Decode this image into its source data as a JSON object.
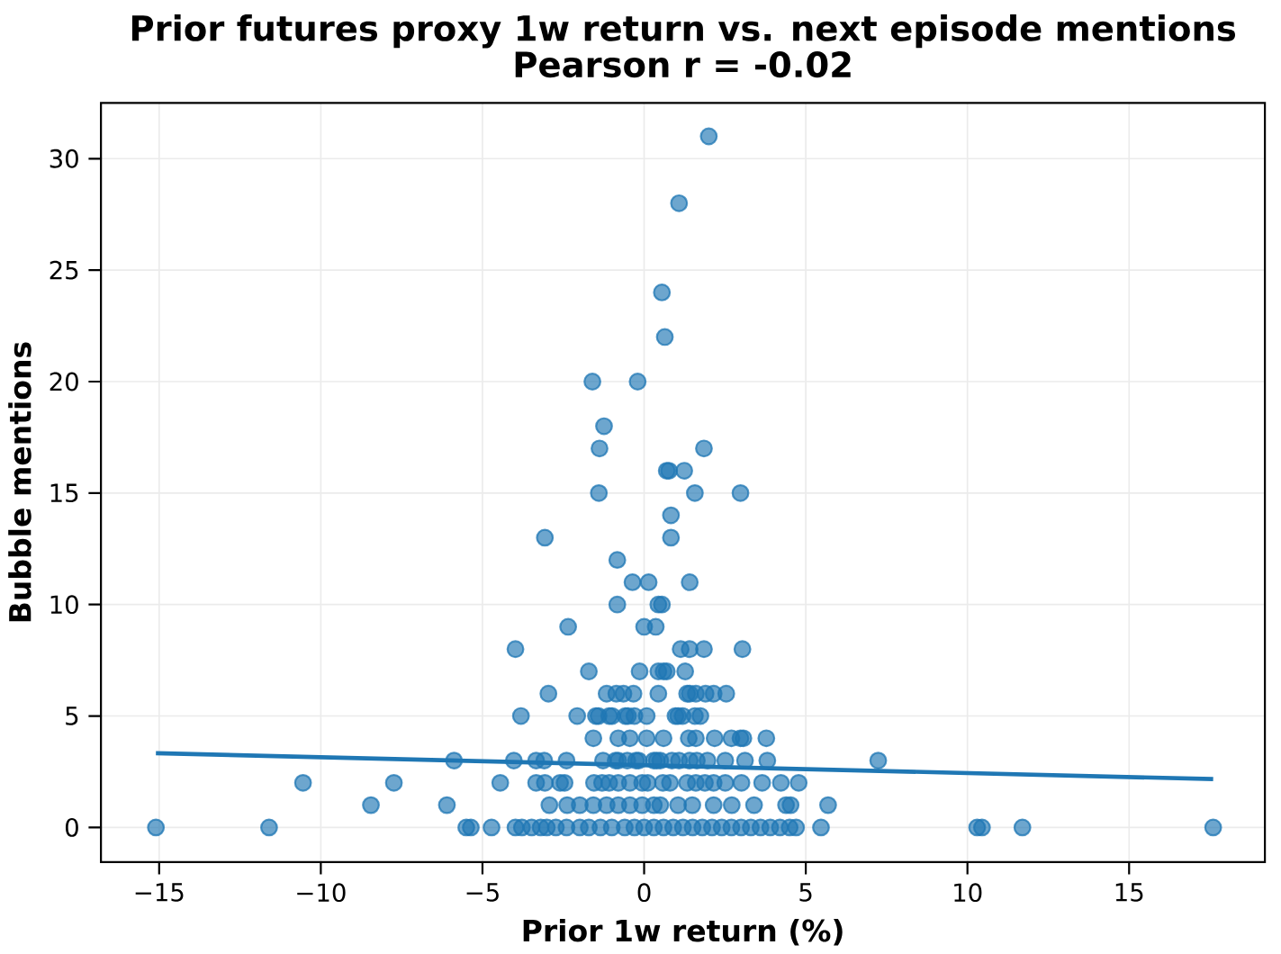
{
  "chart_data": {
    "type": "scatter",
    "title": "Prior futures proxy 1w return vs. next episode mentions",
    "subtitle": "Pearson r = -0.02",
    "xlabel": "Prior 1w return (%)",
    "ylabel": "Bubble mentions",
    "xlim": [
      -16.8,
      19.2
    ],
    "ylim": [
      -1.55,
      32.5
    ],
    "xticks": [
      {
        "value": -15,
        "label": "−15"
      },
      {
        "value": -10,
        "label": "−10"
      },
      {
        "value": -5,
        "label": "−5"
      },
      0,
      5,
      10,
      15
    ],
    "yticks": [
      0,
      5,
      10,
      15,
      20,
      25,
      30
    ],
    "grid": true,
    "marker": "circle",
    "series": [
      {
        "type": "scatter",
        "color": "#1f77b4",
        "x": [
          2.0,
          1.08,
          0.55,
          0.64,
          -1.6,
          -0.2,
          -1.24,
          -1.38,
          1.85,
          0.7,
          0.77,
          1.24,
          -1.4,
          1.57,
          2.98,
          0.83,
          -3.07,
          0.83,
          -0.83,
          -0.36,
          0.14,
          1.41,
          -0.83,
          0.44,
          0.55,
          -2.35,
          0.0,
          0.36,
          -3.98,
          1.13,
          1.41,
          1.85,
          3.04,
          -1.71,
          -0.14,
          0.44,
          0.6,
          0.7,
          1.27,
          -2.96,
          -1.16,
          -0.86,
          -0.64,
          -0.33,
          0.44,
          1.33,
          1.41,
          1.6,
          1.9,
          2.15,
          2.54,
          -3.81,
          -2.07,
          -1.49,
          -1.41,
          -1.08,
          -0.99,
          -0.58,
          -0.5,
          -0.3,
          0.08,
          0.97,
          1.05,
          1.19,
          1.57,
          1.74,
          -1.57,
          -0.8,
          -0.44,
          0.08,
          0.6,
          1.38,
          1.6,
          2.18,
          2.7,
          2.98,
          3.07,
          3.78,
          -5.88,
          -4.03,
          -3.34,
          -3.09,
          -2.4,
          -1.27,
          -0.88,
          -0.8,
          -0.52,
          -0.25,
          -0.17,
          0.3,
          0.5,
          0.39,
          0.86,
          1.08,
          1.41,
          1.63,
          1.96,
          2.51,
          3.12,
          3.81,
          7.24,
          -4.45,
          -3.34,
          -3.07,
          -2.6,
          -2.46,
          -1.55,
          -1.3,
          -1.08,
          -0.8,
          -0.44,
          -0.06,
          0.11,
          0.58,
          0.8,
          1.33,
          1.6,
          1.88,
          2.15,
          2.51,
          3.01,
          3.65,
          4.23,
          4.78,
          -10.55,
          -7.74,
          -6.1,
          -2.93,
          -2.38,
          -1.99,
          -1.57,
          -1.16,
          -0.8,
          -0.44,
          -0.06,
          0.3,
          0.5,
          1.05,
          1.49,
          2.15,
          2.71,
          3.4,
          4.39,
          4.53,
          5.69,
          -8.45,
          -15.1,
          -11.6,
          -5.5,
          -5.36,
          -4.72,
          -3.98,
          -3.78,
          -3.48,
          -3.2,
          -3.01,
          -2.73,
          -2.4,
          -1.99,
          -1.71,
          -1.35,
          -1.0,
          -0.6,
          -0.3,
          0.0,
          0.3,
          0.6,
          0.9,
          1.2,
          1.5,
          1.8,
          2.1,
          2.4,
          2.7,
          3.0,
          3.3,
          3.6,
          3.9,
          4.2,
          4.5,
          4.7,
          5.47,
          10.3,
          10.45,
          11.7,
          17.6
        ],
        "values": [
          31,
          28,
          24,
          22,
          20,
          20,
          18,
          17,
          17,
          16,
          16,
          16,
          15,
          15,
          15,
          14,
          13,
          13,
          12,
          11,
          11,
          11,
          10,
          10,
          10,
          9,
          9,
          9,
          8,
          8,
          8,
          8,
          8,
          7,
          7,
          7,
          7,
          7,
          7,
          6,
          6,
          6,
          6,
          6,
          6,
          6,
          6,
          6,
          6,
          6,
          6,
          5,
          5,
          5,
          5,
          5,
          5,
          5,
          5,
          5,
          5,
          5,
          5,
          5,
          5,
          5,
          4,
          4,
          4,
          4,
          4,
          4,
          4,
          4,
          4,
          4,
          4,
          4,
          3,
          3,
          3,
          3,
          3,
          3,
          3,
          3,
          3,
          3,
          3,
          3,
          3,
          3,
          3,
          3,
          3,
          3,
          3,
          3,
          3,
          3,
          3,
          2,
          2,
          2,
          2,
          2,
          2,
          2,
          2,
          2,
          2,
          2,
          2,
          2,
          2,
          2,
          2,
          2,
          2,
          2,
          2,
          2,
          2,
          2,
          2,
          2,
          1,
          1,
          1,
          1,
          1,
          1,
          1,
          1,
          1,
          1,
          1,
          1,
          1,
          1,
          1,
          1,
          1,
          1,
          1,
          1,
          0,
          0,
          0,
          0,
          0,
          0,
          0,
          0,
          0,
          0,
          0,
          0,
          0,
          0,
          0,
          0,
          0,
          0,
          0,
          0,
          0,
          0,
          0,
          0,
          0,
          0,
          0,
          0,
          0,
          0,
          0,
          0,
          0,
          0,
          0,
          0,
          0,
          0,
          0,
          0
        ]
      },
      {
        "type": "line",
        "color": "#1f77b4",
        "marker": "none",
        "x": [
          -15.1,
          17.6
        ],
        "values": [
          3.33,
          2.17
        ]
      }
    ]
  }
}
